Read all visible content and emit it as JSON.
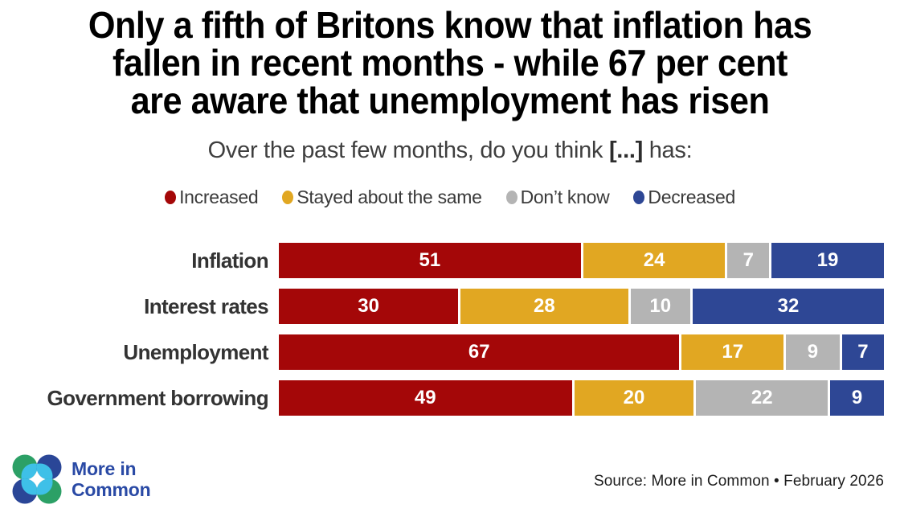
{
  "title": {
    "line1": "Only a fifth of Britons know that inflation has",
    "line2": "fallen in recent months - while 67 per cent",
    "line3": "are aware that unemployment has risen"
  },
  "subtitle": {
    "prefix": "Over the past few months, do you think ",
    "bold": "[...]",
    "suffix": " has:"
  },
  "chart_data": {
    "type": "bar",
    "orientation": "horizontal",
    "stacked": true,
    "grid": false,
    "legend_position": "top",
    "value_labels": "inside, white, bold",
    "xlim": [
      0,
      100
    ],
    "categories": [
      "Inflation",
      "Interest rates",
      "Unemployment",
      "Government borrowing"
    ],
    "series": [
      {
        "name": "Increased",
        "color": "#a40708",
        "values": [
          51,
          30,
          67,
          49
        ]
      },
      {
        "name": "Stayed about the same",
        "color": "#e1a722",
        "values": [
          24,
          28,
          17,
          20
        ]
      },
      {
        "name": "Don’t know",
        "color": "#b4b4b4",
        "values": [
          7,
          10,
          9,
          22
        ]
      },
      {
        "name": "Decreased",
        "color": "#2e4795",
        "values": [
          19,
          32,
          7,
          9
        ]
      }
    ]
  },
  "footer": {
    "brand_line1": "More in",
    "brand_line2": "Common",
    "source": "Source: More in Common • February 2026",
    "logo_colors": {
      "green": "#2ca066",
      "cyan": "#3ec0e8",
      "navy": "#2a4697",
      "text_blue": "#2a4aa5"
    }
  }
}
